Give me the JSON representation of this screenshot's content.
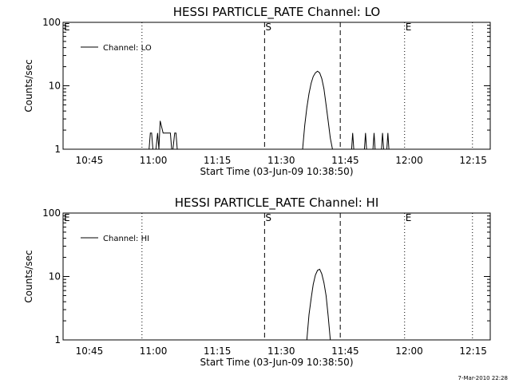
{
  "footer_stamp": "7-Mar-2010 22:28",
  "chart_data": [
    {
      "type": "line",
      "title": "HESSI PARTICLE_RATE Channel: LO",
      "xlabel": "Start Time (03-Jun-09 10:38:50)",
      "ylabel": "Counts/sec",
      "y_scale": "log",
      "ylim": [
        1,
        100
      ],
      "xlim": [
        "10:38:50",
        "12:19:00"
      ],
      "x_tick_labels": [
        "10:45",
        "11:00",
        "11:15",
        "11:30",
        "11:45",
        "12:00",
        "12:15"
      ],
      "y_tick_labels": [
        "1",
        "10",
        "100"
      ],
      "grid": false,
      "legend_position": "top-left",
      "series": [
        {
          "name": "Channel: LO",
          "color": "#000000",
          "x": [
            "10:59:00",
            "10:59:18",
            "10:59:36",
            "10:59:54",
            "11:00:36",
            "11:01:00",
            "11:01:18",
            "11:01:36",
            "11:02:18",
            "11:02:54",
            "11:03:36",
            "11:04:00",
            "11:04:18",
            "11:04:36",
            "11:05:00",
            "11:05:18",
            "11:05:36",
            "11:35:00",
            "11:35:30",
            "11:36:00",
            "11:36:30",
            "11:37:00",
            "11:37:30",
            "11:38:00",
            "11:38:30",
            "11:39:00",
            "11:39:30",
            "11:40:00",
            "11:40:30",
            "11:41:00",
            "11:41:30",
            "11:42:00",
            "11:46:30",
            "11:46:45",
            "11:47:00",
            "11:49:30",
            "11:49:45",
            "11:50:00",
            "11:51:30",
            "11:51:45",
            "11:52:00",
            "11:53:30",
            "11:53:45",
            "11:54:00",
            "11:54:45",
            "11:55:00",
            "11:55:15"
          ],
          "y": [
            1,
            1.8,
            1.8,
            1,
            1,
            1.8,
            1,
            2.8,
            1.8,
            1.8,
            1.8,
            1.8,
            1,
            1,
            1.8,
            1.8,
            1,
            1,
            2.4,
            4.5,
            7.5,
            11,
            14,
            16,
            17,
            16,
            13,
            9,
            5,
            2.8,
            1.5,
            1,
            1,
            1.8,
            1,
            1,
            1.8,
            1,
            1,
            1.8,
            1,
            1,
            1.8,
            1,
            1,
            1.8,
            1
          ]
        }
      ],
      "annotations": [
        {
          "text": "E",
          "x": "10:38:50",
          "line": "none"
        },
        {
          "text": "",
          "x": "10:57:20",
          "line": "dotted"
        },
        {
          "text": "S",
          "x": "11:26:05",
          "line": "dashed"
        },
        {
          "text": "",
          "x": "11:43:50",
          "line": "dashed"
        },
        {
          "text": "E",
          "x": "11:58:55",
          "line": "dotted"
        },
        {
          "text": "",
          "x": "12:14:50",
          "line": "dotted"
        }
      ]
    },
    {
      "type": "line",
      "title": "HESSI PARTICLE_RATE Channel: HI",
      "xlabel": "Start Time (03-Jun-09 10:38:50)",
      "ylabel": "Counts/sec",
      "y_scale": "log",
      "ylim": [
        1,
        100
      ],
      "xlim": [
        "10:38:50",
        "12:19:00"
      ],
      "x_tick_labels": [
        "10:45",
        "11:00",
        "11:15",
        "11:30",
        "11:45",
        "12:00",
        "12:15"
      ],
      "y_tick_labels": [
        "1",
        "10",
        "100"
      ],
      "grid": false,
      "legend_position": "top-left",
      "series": [
        {
          "name": "Channel: HI",
          "color": "#000000",
          "x": [
            "11:36:00",
            "11:36:30",
            "11:37:00",
            "11:37:30",
            "11:38:00",
            "11:38:30",
            "11:39:00",
            "11:39:30",
            "11:40:00",
            "11:40:30",
            "11:41:00",
            "11:41:30"
          ],
          "y": [
            1,
            2.5,
            4.5,
            7.5,
            10.5,
            12.5,
            13,
            11,
            8,
            5,
            2.4,
            1
          ]
        }
      ],
      "annotations": [
        {
          "text": "E",
          "x": "10:38:50",
          "line": "none"
        },
        {
          "text": "",
          "x": "10:57:20",
          "line": "dotted"
        },
        {
          "text": "S",
          "x": "11:26:05",
          "line": "dashed"
        },
        {
          "text": "",
          "x": "11:43:50",
          "line": "dashed"
        },
        {
          "text": "E",
          "x": "11:58:55",
          "line": "dotted"
        },
        {
          "text": "",
          "x": "12:14:50",
          "line": "dotted"
        }
      ]
    }
  ]
}
